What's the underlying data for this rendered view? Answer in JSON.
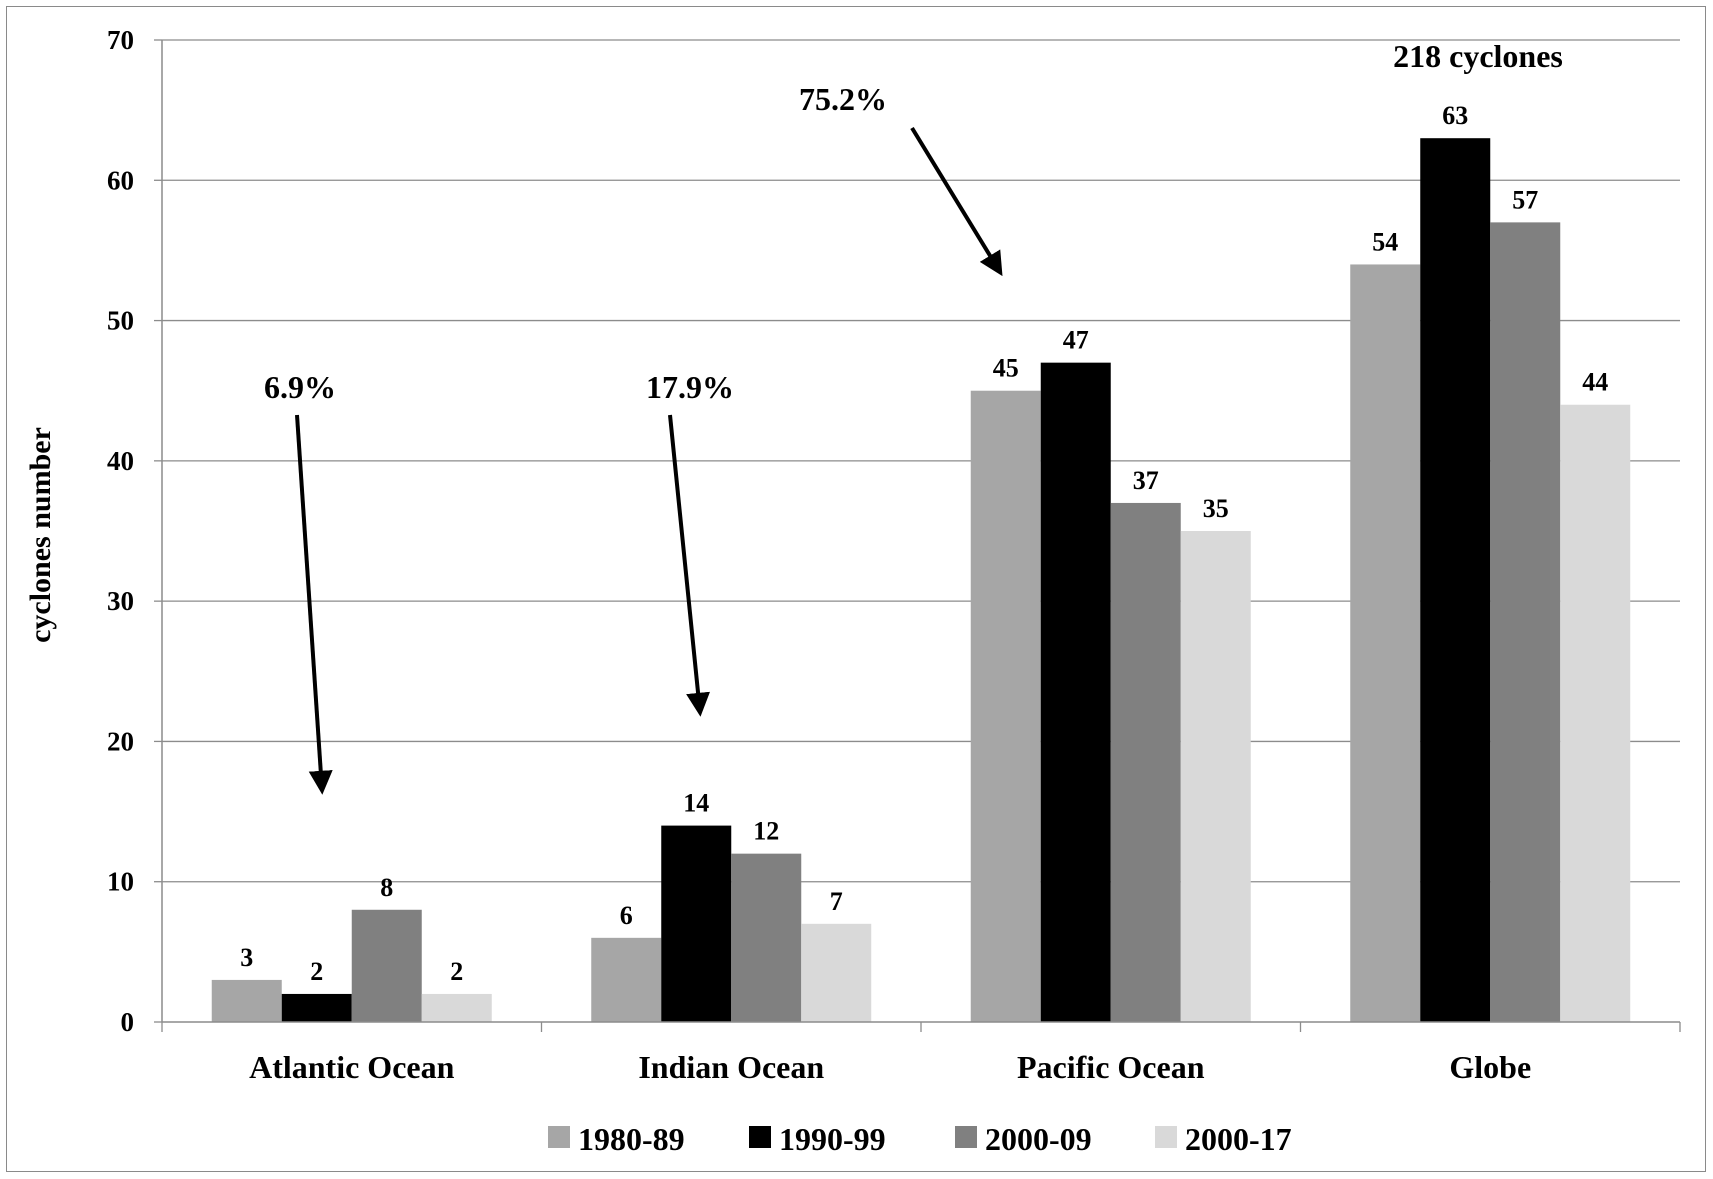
{
  "chart_data": {
    "type": "bar",
    "title": "",
    "xlabel": "",
    "ylabel": "cyclones number",
    "ylim": [
      0,
      70
    ],
    "yticks": [
      0,
      10,
      20,
      30,
      40,
      50,
      60,
      70
    ],
    "categories": [
      "Atlantic Ocean",
      "Indian Ocean",
      "Pacific Ocean",
      "Globe"
    ],
    "series": [
      {
        "name": "1980-89",
        "color": "#a6a6a6",
        "values": [
          3,
          6,
          45,
          54
        ]
      },
      {
        "name": "1990-99",
        "color": "#000000",
        "values": [
          2,
          14,
          47,
          63
        ]
      },
      {
        "name": "2000-09",
        "color": "#808080",
        "values": [
          8,
          12,
          37,
          57
        ]
      },
      {
        "name": "2000-17",
        "color": "#d9d9d9",
        "values": [
          2,
          7,
          35,
          44
        ]
      }
    ],
    "annotations": [
      {
        "text": "6.9%",
        "category": "Atlantic Ocean"
      },
      {
        "text": "17.9%",
        "category": "Indian Ocean"
      },
      {
        "text": "75.2%",
        "category": "Pacific Ocean"
      },
      {
        "text": "218 cyclones",
        "category": "Globe"
      }
    ],
    "grid": true,
    "legend_position": "bottom"
  }
}
